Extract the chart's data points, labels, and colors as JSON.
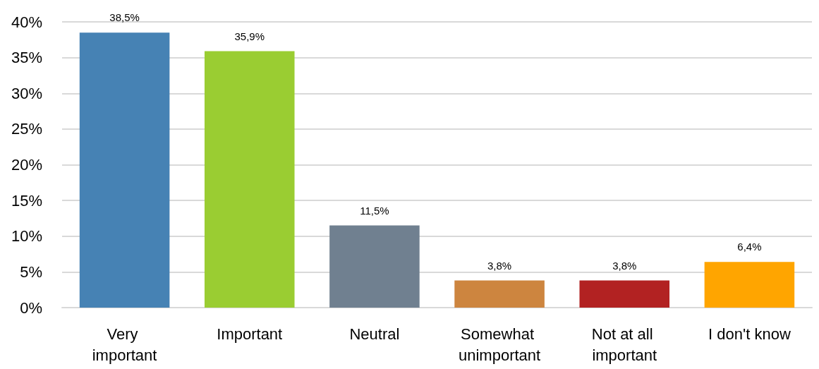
{
  "chart_data": {
    "type": "bar",
    "categories": [
      "Very important",
      "Important",
      "Neutral",
      "Somewhat unimportant",
      "Not at all important",
      "I don't know"
    ],
    "values": [
      38.5,
      35.9,
      11.5,
      3.8,
      3.8,
      6.4
    ],
    "colors": [
      "#4682b4",
      "#9acd32",
      "#708090",
      "#cd853f",
      "#b22222",
      "#ffa500"
    ],
    "value_labels": [
      "38,5%",
      "35,9%",
      "11,5%",
      "3,8%",
      "3,8%",
      "6,4%"
    ],
    "ylim": [
      0,
      40
    ],
    "yticks": [
      {
        "value": 0,
        "label": "0%"
      },
      {
        "value": 5,
        "label": "5%"
      },
      {
        "value": 10,
        "label": "10%"
      },
      {
        "value": 15,
        "label": "15%"
      },
      {
        "value": 20,
        "label": "20%"
      },
      {
        "value": 25,
        "label": "25%"
      },
      {
        "value": 30,
        "label": "30%"
      },
      {
        "value": 35,
        "label": "35%"
      },
      {
        "value": 40,
        "label": "40%"
      }
    ],
    "grid": "y"
  }
}
